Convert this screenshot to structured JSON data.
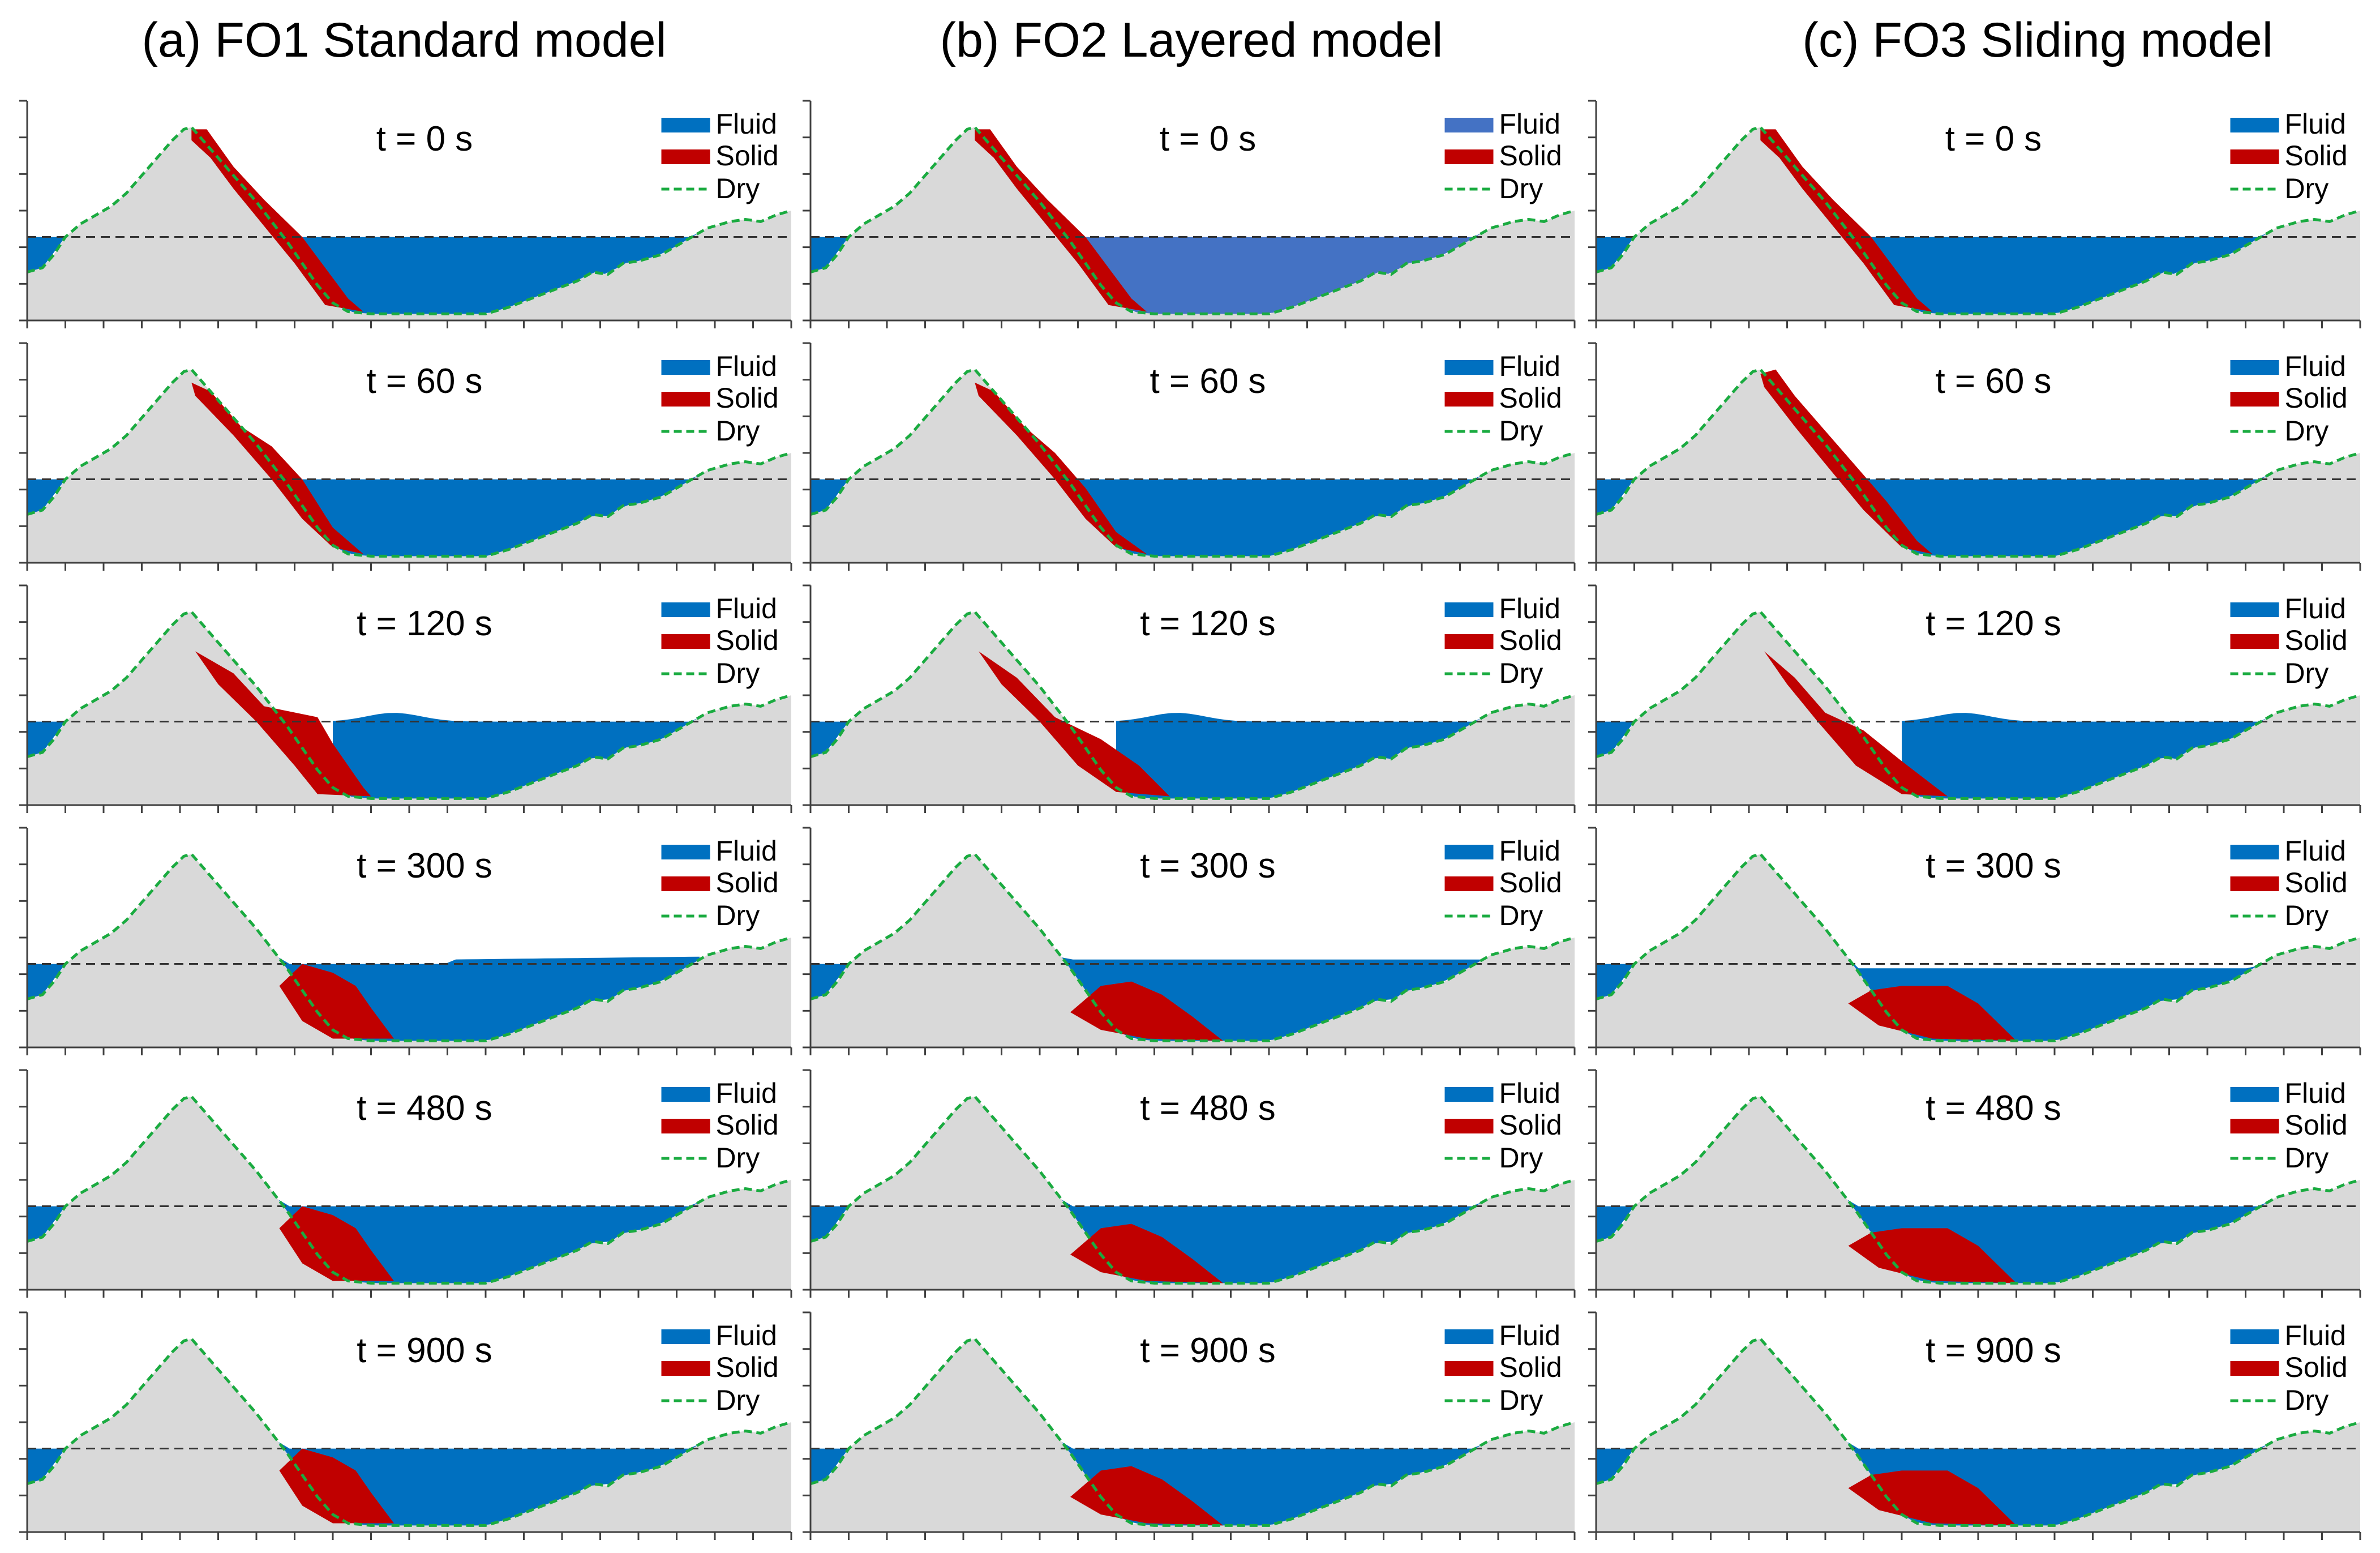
{
  "columns": [
    {
      "title": "(a) FO1 Standard model",
      "model": "standard"
    },
    {
      "title": "(b) FO2 Layered model",
      "model": "layered"
    },
    {
      "title": "(c) FO3 Sliding model",
      "model": "sliding"
    }
  ],
  "time_labels": [
    "t = 0 s",
    "t = 60 s",
    "t = 120 s",
    "t = 300 s",
    "t = 480 s",
    "t = 900 s"
  ],
  "legend": {
    "fluid": "Fluid",
    "solid": "Solid",
    "dry": "Dry"
  },
  "colors": {
    "fluid": "#0070C0",
    "fluid_layered_initial": "#4472C4",
    "solid": "#C00000",
    "dry_line": "#1AAB40",
    "terrain": "#D9D9D9",
    "still_water_line": "#333333",
    "axis": "#404040"
  },
  "chart_data": {
    "type": "area",
    "description_note": "",
    "panels_grid": {
      "rows": 6,
      "cols": 3
    },
    "bed_profile_x": [
      0,
      0.02,
      0.05,
      0.075,
      0.1,
      0.13,
      0.16,
      0.19,
      0.21,
      0.22,
      0.235,
      0.27,
      0.31,
      0.35,
      0.39,
      0.42,
      0.45,
      0.5,
      0.55,
      0.6,
      0.65,
      0.7,
      0.73,
      0.76,
      0.8,
      0.84,
      0.87,
      0.9,
      0.93,
      0.96,
      1.0
    ],
    "still_water_level": 0.62
  }
}
